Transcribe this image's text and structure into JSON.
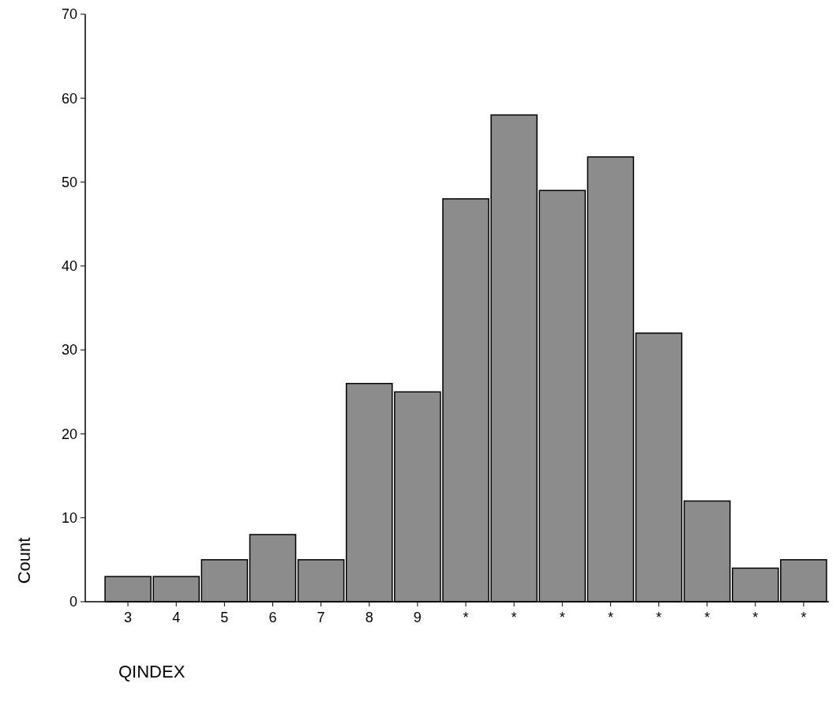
{
  "chart_data": {
    "type": "bar",
    "xlabel": "QINDEX",
    "ylabel": "Count",
    "categories": [
      "3",
      "4",
      "5",
      "6",
      "7",
      "8",
      "9",
      "*",
      "*",
      "*",
      "*",
      "*",
      "*",
      "*",
      "*"
    ],
    "values": [
      3,
      3,
      5,
      8,
      5,
      26,
      25,
      48,
      58,
      49,
      53,
      32,
      12,
      4,
      5
    ],
    "color": "#8c8c8c",
    "ylim": [
      0,
      70
    ],
    "yticks": [
      0,
      10,
      20,
      30,
      40,
      50,
      60,
      70
    ],
    "grid": false
  }
}
